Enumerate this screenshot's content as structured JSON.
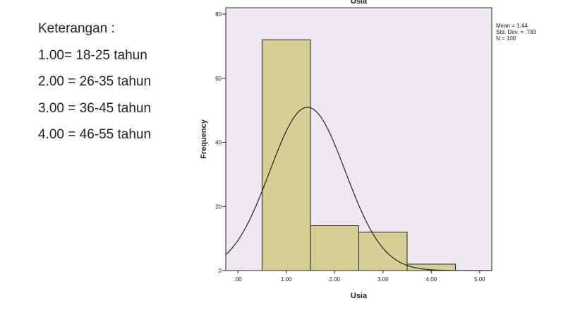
{
  "notes": {
    "heading": "Keterangan :",
    "items": [
      "1.00= 18-25 tahun",
      "2.00 = 26-35 tahun",
      "3.00 = 36-45 tahun",
      "4.00 = 46-55 tahun"
    ]
  },
  "stats": {
    "mean": "Mean = 1.44",
    "std_dev": "Std. Dev. = .783",
    "n": "N = 100"
  },
  "chart_data": {
    "type": "bar",
    "title": "Usia",
    "xlabel": "Usia",
    "ylabel": "Frequency",
    "bins": [
      {
        "from": 0.5,
        "to": 1.5,
        "count": 72
      },
      {
        "from": 1.5,
        "to": 2.5,
        "count": 14
      },
      {
        "from": 2.5,
        "to": 3.5,
        "count": 12
      },
      {
        "from": 3.5,
        "to": 4.5,
        "count": 2
      }
    ],
    "normal_curve": {
      "mean": 1.44,
      "sd": 0.783,
      "n": 100,
      "bin_width": 1
    },
    "xlim": [
      -0.25,
      5.25
    ],
    "ylim": [
      0,
      82
    ],
    "x_ticks": [
      0,
      1,
      2,
      3,
      4,
      5
    ],
    "x_tick_labels": [
      ".00",
      "1.00",
      "2.00",
      "3.00",
      "4.00",
      "5.00"
    ],
    "y_ticks": [
      0,
      20,
      40,
      60,
      80
    ],
    "y_tick_labels": [
      "0",
      "20",
      "40",
      "60",
      "80"
    ],
    "colors": {
      "plot_bg": "#f0e8f0",
      "bar_fill": "#d6cf93",
      "bar_stroke": "#222222",
      "curve": "#222222"
    }
  }
}
